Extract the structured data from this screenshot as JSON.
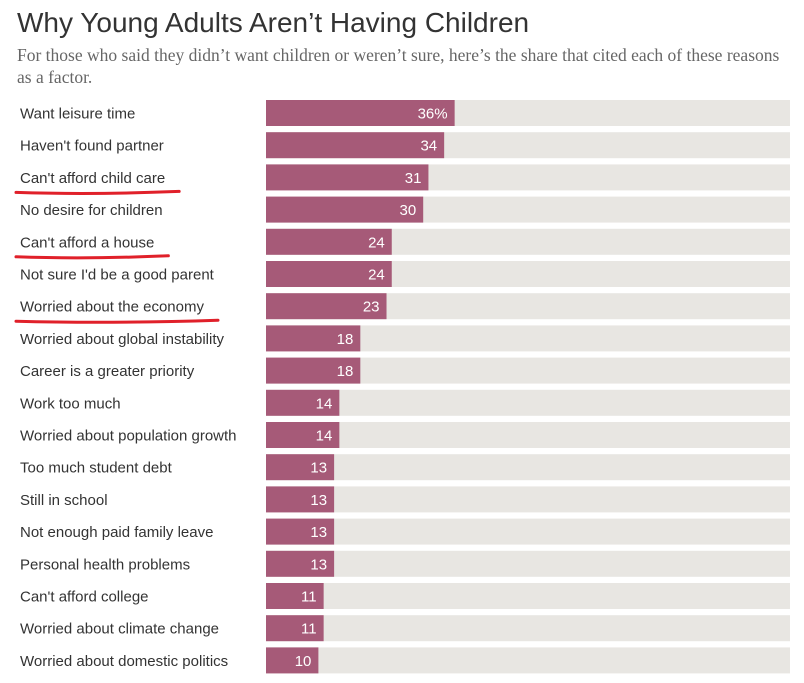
{
  "colors": {
    "bar": "#a65a78",
    "track": "#e8e6e2",
    "label_text": "#333333",
    "value_text": "#ffffff",
    "underline": "#e0202a"
  },
  "chart_data": {
    "type": "bar",
    "orientation": "horizontal",
    "title": "Why Young Adults Aren’t Having Children",
    "subtitle": "For those who said they didn’t want children or weren’t sure, here’s the share that cited each of these reasons as a factor.",
    "xlim": [
      0,
      100
    ],
    "value_format": "first value suffixed with %",
    "annotations": [
      "red underline under: Can't afford child care, Can't afford a house, Worried about the economy"
    ],
    "categories": [
      "Want leisure time",
      "Haven't found partner",
      "Can't afford child care",
      "No desire for children",
      "Can't afford a house",
      "Not sure I'd be a good parent",
      "Worried about the economy",
      "Worried about global instability",
      "Career is a greater priority",
      "Work too much",
      "Worried about population growth",
      "Too much student debt",
      "Still in school",
      "Not enough paid family leave",
      "Personal health problems",
      "Can't afford college",
      "Worried about climate change",
      "Worried about domestic politics"
    ],
    "values": [
      36,
      34,
      31,
      30,
      24,
      24,
      23,
      18,
      18,
      14,
      14,
      13,
      13,
      13,
      13,
      11,
      11,
      10
    ],
    "value_labels": [
      "36%",
      "34",
      "31",
      "30",
      "24",
      "24",
      "23",
      "18",
      "18",
      "14",
      "14",
      "13",
      "13",
      "13",
      "13",
      "11",
      "11",
      "10"
    ],
    "underlined": [
      false,
      false,
      true,
      false,
      true,
      false,
      true,
      false,
      false,
      false,
      false,
      false,
      false,
      false,
      false,
      false,
      false,
      false
    ]
  }
}
